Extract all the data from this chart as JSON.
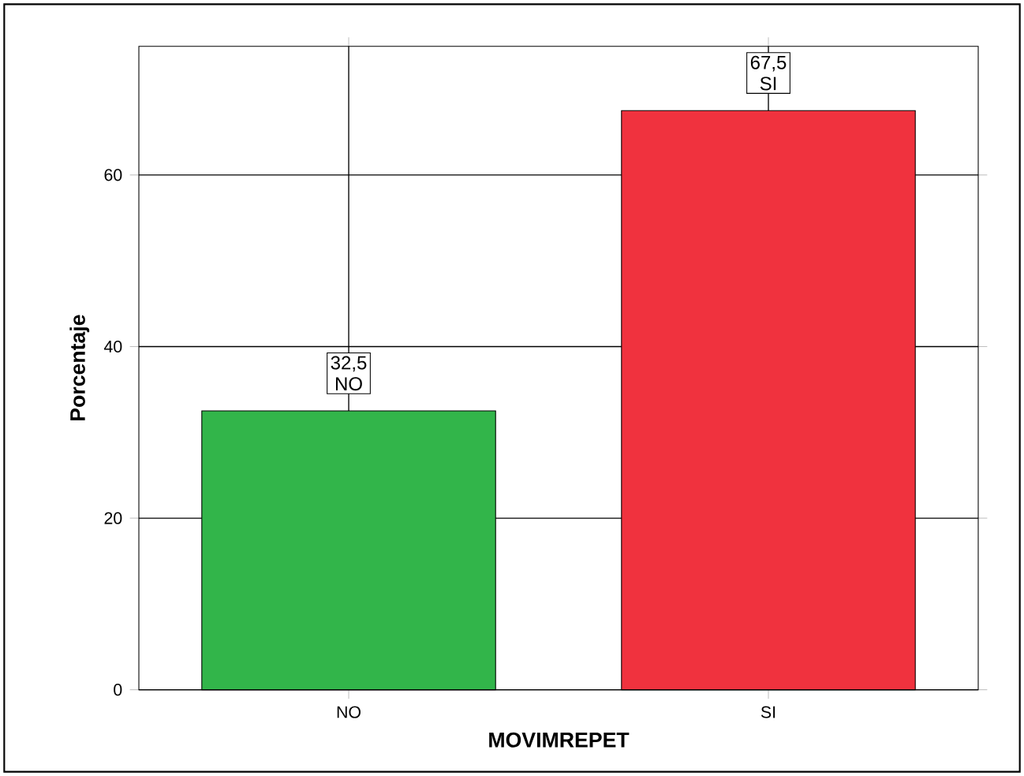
{
  "chart_data": {
    "type": "bar",
    "xlabel": "MOVIMREPET",
    "ylabel": "Porcentaje",
    "categories": [
      "NO",
      "SI"
    ],
    "values": [
      32.5,
      67.5
    ],
    "colors": [
      "#32b54a",
      "#f0323e"
    ],
    "value_labels": [
      "32,5",
      "67,5"
    ],
    "ylim": [
      0,
      75
    ],
    "yticks": [
      0,
      20,
      40,
      60
    ],
    "grid": true
  }
}
